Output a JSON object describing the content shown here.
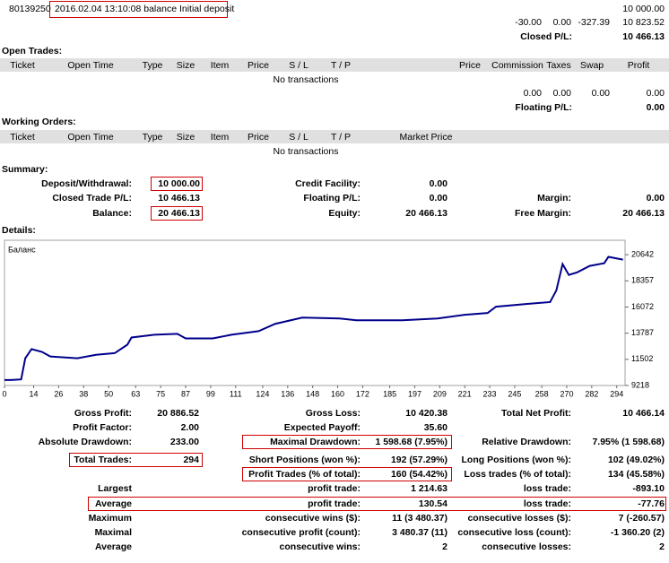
{
  "header": {
    "account": "80139250",
    "deal": "2016.02.04 13:10:08   balance Initial deposit",
    "amount": "10 000.00",
    "totals": [
      "-30.00",
      "0.00",
      "-327.39",
      "10 823.52"
    ],
    "closed_label": "Closed P/L:",
    "closed_value": "10 466.13"
  },
  "open_trades": {
    "title": "Open Trades:",
    "columns": [
      "Ticket",
      "Open Time",
      "Type",
      "Size",
      "Item",
      "Price",
      "S / L",
      "T / P",
      "Price",
      "Commission",
      "Taxes",
      "Swap",
      "Profit"
    ],
    "empty": "No transactions",
    "totals": [
      "0.00",
      "0.00",
      "0.00",
      "0.00"
    ],
    "floating_label": "Floating P/L:",
    "floating_value": "0.00"
  },
  "working_orders": {
    "title": "Working Orders:",
    "columns": [
      "Ticket",
      "Open Time",
      "Type",
      "Size",
      "Item",
      "Price",
      "S / L",
      "T / P",
      "Market Price"
    ],
    "empty": "No transactions"
  },
  "summary": {
    "title": "Summary:",
    "columns": [
      [
        {
          "label": "Deposit/Withdrawal:",
          "value": "10 000.00",
          "boxed": true
        },
        {
          "label": "Closed Trade P/L:",
          "value": "10 466.13"
        },
        {
          "label": "Balance:",
          "value": "20 466.13",
          "boxed": true
        }
      ],
      [
        {
          "label": "Credit Facility:",
          "value": "0.00"
        },
        {
          "label": "Floating P/L:",
          "value": "0.00"
        },
        {
          "label": "Equity:",
          "value": "20 466.13"
        }
      ],
      [
        {
          "label": "Margin:",
          "value": "0.00"
        },
        {
          "label": "Free Margin:",
          "value": "20 466.13"
        }
      ]
    ]
  },
  "details": {
    "title": "Details:"
  },
  "chart_data": {
    "type": "line",
    "legend": "Баланс",
    "xlim": [
      0,
      298
    ],
    "xticks": [
      0,
      14,
      26,
      38,
      50,
      63,
      75,
      87,
      99,
      111,
      124,
      136,
      148,
      160,
      172,
      185,
      197,
      209,
      221,
      233,
      245,
      258,
      270,
      282,
      294
    ],
    "ylim": [
      9218,
      21900
    ],
    "yticks": [
      9218,
      11502,
      13787,
      16072,
      18357,
      20642
    ],
    "series": [
      {
        "name": "Баланс",
        "color": "#00008b",
        "x": [
          0,
          3,
          8,
          10,
          13,
          18,
          22,
          35,
          44,
          53,
          59,
          61,
          72,
          83,
          87,
          100,
          109,
          122,
          130,
          143,
          161,
          169,
          191,
          208,
          221,
          232,
          236,
          251,
          262,
          265,
          268,
          271,
          275,
          281,
          288,
          290,
          297
        ],
        "values": [
          9700,
          9700,
          9750,
          11600,
          12400,
          12150,
          11750,
          11600,
          11900,
          12050,
          12780,
          13410,
          13650,
          13730,
          13330,
          13330,
          13650,
          13960,
          14600,
          15150,
          15070,
          14910,
          14910,
          15070,
          15390,
          15550,
          16100,
          16340,
          16500,
          17520,
          19820,
          18870,
          19100,
          19660,
          19900,
          20450,
          20210
        ]
      }
    ]
  },
  "stats": [
    {
      "left": {
        "label": "Gross Profit:",
        "value": "20 886.52"
      },
      "mid": {
        "label": "Gross Loss:",
        "value": "10 420.38"
      },
      "right": {
        "label": "Total Net Profit:",
        "value": "10 466.14"
      }
    },
    {
      "left": {
        "label": "Profit Factor:",
        "value": "2.00"
      },
      "mid": {
        "label": "Expected Payoff:",
        "value": "35.60"
      }
    },
    {
      "left": {
        "label": "Absolute Drawdown:",
        "value": "233.00"
      },
      "mid": {
        "label": "Maximal Drawdown:",
        "value": "1 598.68 (7.95%)",
        "boxed": true
      },
      "right": {
        "label": "Relative Drawdown:",
        "value": "7.95% (1 598.68)"
      }
    },
    {
      "left": {
        "label": "Total Trades:",
        "value": "294",
        "boxed": true
      },
      "mid": {
        "label": "Short Positions (won %):",
        "value": "192 (57.29%)"
      },
      "right": {
        "label": "Long Positions (won %):",
        "value": "102 (49.02%)"
      }
    },
    {
      "mid": {
        "label": "Profit Trades (% of total):",
        "value": "160 (54.42%)",
        "boxed": true
      },
      "right": {
        "label": "Loss trades (% of total):",
        "value": "134 (45.58%)"
      }
    },
    {
      "left": {
        "label": "Largest"
      },
      "mid": {
        "label": "profit trade:",
        "value": "1 214.63"
      },
      "right": {
        "label": "loss trade:",
        "value": "-893.10"
      }
    },
    {
      "boxed": true,
      "left": {
        "label": "Average"
      },
      "mid": {
        "label": "profit trade:",
        "value": "130.54"
      },
      "right": {
        "label": "loss trade:",
        "value": "-77.76"
      }
    },
    {
      "left": {
        "label": "Maximum"
      },
      "mid": {
        "label": "consecutive wins ($):",
        "value": "11 (3 480.37)"
      },
      "right": {
        "label": "consecutive losses ($):",
        "value": "7 (-260.57)"
      }
    },
    {
      "left": {
        "label": "Maximal"
      },
      "mid": {
        "label": "consecutive profit (count):",
        "value": "3 480.37 (11)"
      },
      "right": {
        "label": "consecutive loss (count):",
        "value": "-1 360.20 (2)"
      }
    },
    {
      "left": {
        "label": "Average"
      },
      "mid": {
        "label": "consecutive wins:",
        "value": "2"
      },
      "right": {
        "label": "consecutive losses:",
        "value": "2"
      }
    }
  ]
}
